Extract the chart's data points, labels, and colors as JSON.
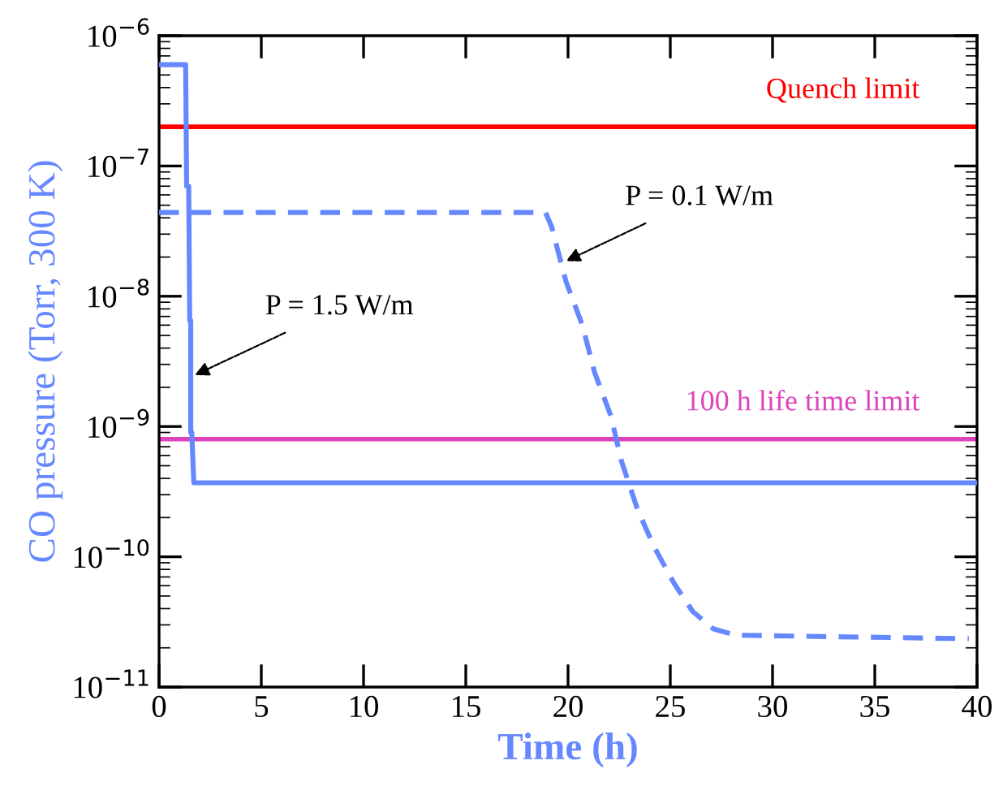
{
  "chart_data": {
    "type": "line",
    "xlabel": "Time (h)",
    "ylabel": "CO pressure (Torr, 300 K)",
    "log": "y",
    "grid": false,
    "legend": false,
    "marker": "none",
    "xlim": [
      0,
      40
    ],
    "xticks": [
      0,
      5,
      10,
      15,
      20,
      25,
      30,
      35,
      40
    ],
    "ylim": [
      1e-11,
      1e-06
    ],
    "yticks": [
      {
        "value": 1e-11,
        "label": "10$^{−11}$"
      },
      {
        "value": 1e-10,
        "label": "10$^{−10}$"
      },
      {
        "value": 1e-09,
        "label": "10$^{−9}$"
      },
      {
        "value": 1e-08,
        "label": "10$^{−8}$"
      },
      {
        "value": 1e-07,
        "label": "10$^{−7}$"
      },
      {
        "value": 1e-06,
        "label": "10$^{−6}$"
      }
    ],
    "series": [
      {
        "color": "#6688ff",
        "line_style": "solid",
        "x": [
          0,
          1.3,
          1.35,
          1.45,
          1.5,
          1.55,
          1.55,
          1.6,
          1.7,
          40
        ],
        "values": [
          6e-07,
          6e-07,
          7e-08,
          7e-08,
          6.5e-09,
          6.5e-09,
          9e-10,
          9e-10,
          3.7e-10,
          3.7e-10
        ]
      },
      {
        "color": "#6688ff",
        "line_style": "dashed",
        "x": [
          0,
          18.9,
          19.2,
          19.9,
          20.7,
          21.3,
          22.1,
          22.6,
          23.4,
          24.2,
          25.2,
          26.1,
          27.1,
          28.2,
          39.6
        ],
        "values": [
          4.4e-08,
          4.4e-08,
          3.4e-08,
          1.3e-08,
          6e-09,
          2.6e-09,
          1.2e-09,
          5.5e-10,
          2.3e-10,
          1.2e-10,
          6.2e-11,
          3.8e-11,
          2.8e-11,
          2.5e-11,
          2.35e-11
        ]
      }
    ],
    "ref_lines": [
      {
        "axis": "y",
        "value": 2e-07,
        "label": "Quench limit",
        "color": "#ff0000"
      },
      {
        "axis": "y",
        "value": 8e-10,
        "label": "100 h life time limit",
        "color": "#dd44bb"
      }
    ],
    "annotations": [
      {
        "text": "P = 1.5 W/m",
        "x": 1.55,
        "y": 2.4e-09
      },
      {
        "text": "P = 0.1 W/m",
        "x": 19.7,
        "y": 1.8e-08
      }
    ]
  }
}
